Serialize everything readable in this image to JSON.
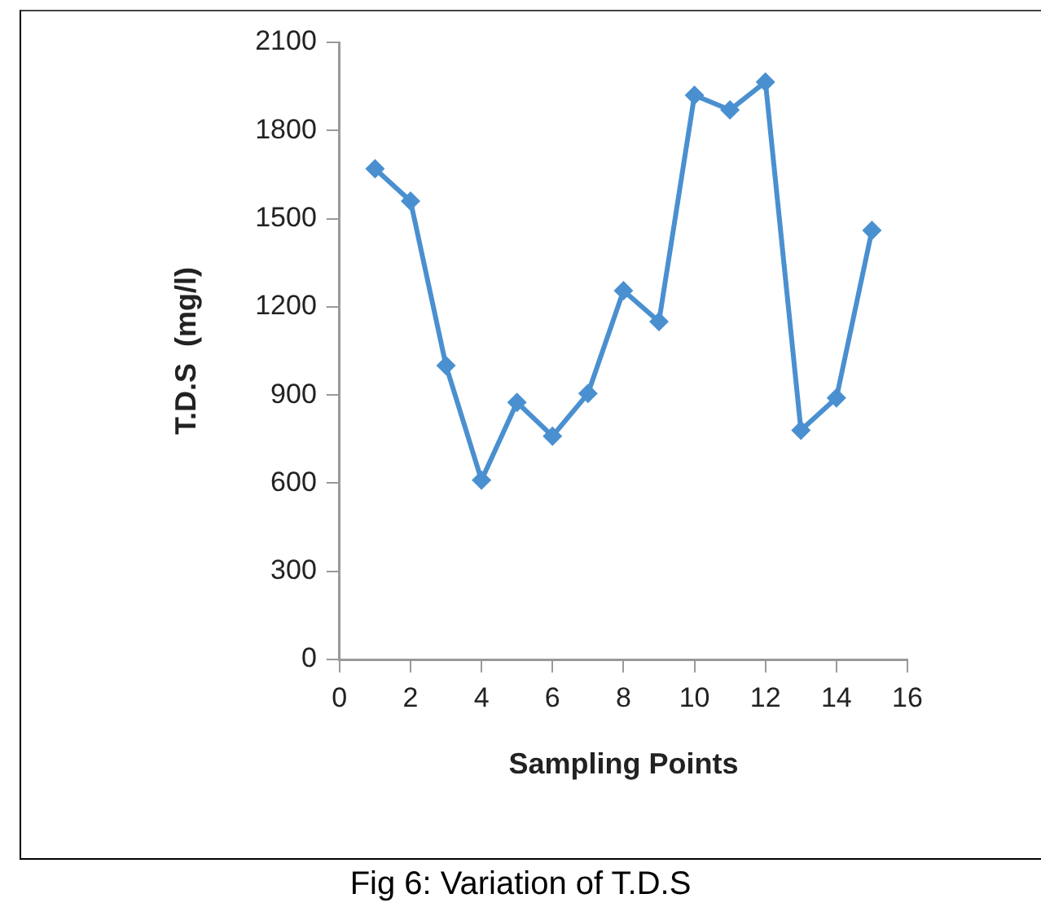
{
  "chart_data": {
    "type": "line",
    "xlabel": "Sampling Points",
    "ylabel": "T.D.S  (mg/l)",
    "annotations": [
      "Fig 6: Variation of T.D.S"
    ],
    "x": [
      1,
      2,
      3,
      4,
      5,
      6,
      7,
      8,
      9,
      10,
      11,
      12,
      13,
      14,
      15
    ],
    "series": [
      {
        "color": "#4a90d0",
        "values": [
          1670,
          1560,
          1000,
          610,
          875,
          760,
          905,
          1255,
          1150,
          1920,
          1870,
          1965,
          780,
          890,
          1460
        ]
      }
    ],
    "xlim": [
      0,
      16
    ],
    "xticks": [
      0,
      2,
      4,
      6,
      8,
      10,
      12,
      14,
      16
    ],
    "ylim": [
      0,
      2100
    ],
    "yticks": [
      0,
      300,
      600,
      900,
      1200,
      1500,
      1800,
      2100
    ],
    "grid": false,
    "legend": false,
    "marker": "diamond",
    "line_style": "solid"
  }
}
